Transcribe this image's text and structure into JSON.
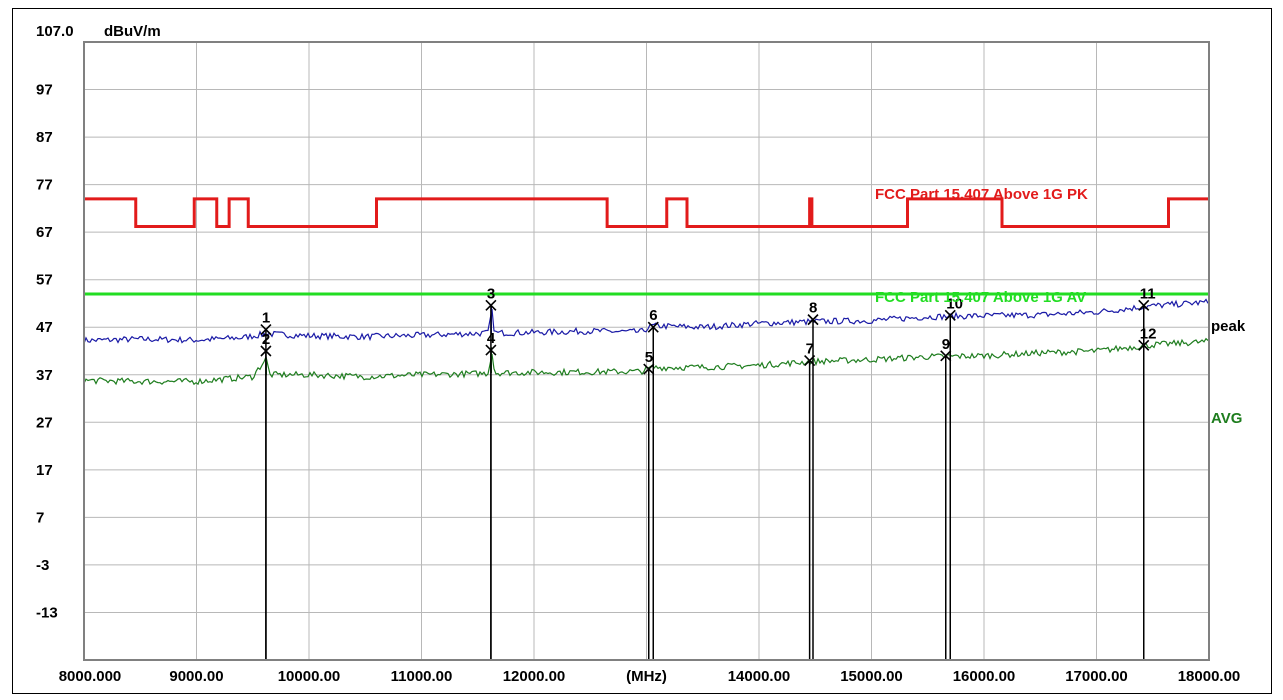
{
  "chart_data": {
    "type": "line",
    "y_top_label": "107.0",
    "y_unit": "dBuV/m",
    "x_unit": "(MHz)",
    "xlim": [
      8000,
      18000
    ],
    "ylim": [
      -23,
      107
    ],
    "y_ticks": [
      107,
      97,
      87,
      77,
      67,
      57,
      47,
      37,
      27,
      17,
      7,
      -3,
      -13
    ],
    "y_tick_labels": [
      "97",
      "87",
      "77",
      "67",
      "57",
      "47",
      "37",
      "27",
      "17",
      "7",
      "-3",
      "-13"
    ],
    "x_ticks": [
      8000,
      9000,
      10000,
      11000,
      12000,
      13000,
      14000,
      15000,
      16000,
      17000,
      18000
    ],
    "x_tick_labels": [
      "8000.000",
      "9000.00",
      "10000.00",
      "11000.00",
      "12000.00",
      "(MHz)",
      "14000.00",
      "15000.00",
      "16000.00",
      "17000.00",
      "18000.00"
    ],
    "grid": true,
    "limits": [
      {
        "name": "FCC Part 15.407 Above 1G PK",
        "color": "#e21b1b",
        "points": [
          [
            8000,
            74
          ],
          [
            8460,
            74
          ],
          [
            8460,
            68.2
          ],
          [
            8980,
            68.2
          ],
          [
            8980,
            74
          ],
          [
            9180,
            74
          ],
          [
            9180,
            68.2
          ],
          [
            9290,
            68.2
          ],
          [
            9290,
            74
          ],
          [
            9460,
            74
          ],
          [
            9460,
            68.2
          ],
          [
            10600,
            68.2
          ],
          [
            10600,
            74
          ],
          [
            12650,
            74
          ],
          [
            12650,
            68.2
          ],
          [
            13180,
            68.2
          ],
          [
            13180,
            74
          ],
          [
            13360,
            74
          ],
          [
            13360,
            68.2
          ],
          [
            14450,
            68.2
          ],
          [
            14450,
            74
          ],
          [
            14470,
            74
          ],
          [
            14470,
            68.2
          ],
          [
            15320,
            68.2
          ],
          [
            15320,
            74
          ],
          [
            16160,
            74
          ],
          [
            16160,
            68.2
          ],
          [
            17640,
            68.2
          ],
          [
            17640,
            74
          ],
          [
            18000,
            74
          ]
        ]
      },
      {
        "name": "FCC Part 15.407 Above 1G AV",
        "color": "#22dd22",
        "points": [
          [
            8000,
            54
          ],
          [
            18000,
            54
          ]
        ]
      }
    ],
    "series": [
      {
        "name": "peak",
        "color": "#1a1aa6",
        "points": [
          [
            8000,
            44.2
          ],
          [
            8500,
            44.5
          ],
          [
            9000,
            44.3
          ],
          [
            9400,
            44.8
          ],
          [
            9620,
            45.6
          ],
          [
            10000,
            45.2
          ],
          [
            10500,
            45.0
          ],
          [
            11000,
            45.3
          ],
          [
            11600,
            45.8
          ],
          [
            11620,
            51.5
          ],
          [
            11650,
            45.8
          ],
          [
            12000,
            45.9
          ],
          [
            12500,
            46.2
          ],
          [
            12950,
            46.0
          ],
          [
            13050,
            47.3
          ],
          [
            13500,
            47.0
          ],
          [
            14000,
            47.8
          ],
          [
            14500,
            48.2
          ],
          [
            15000,
            48.4
          ],
          [
            15500,
            49.2
          ],
          [
            16000,
            49.4
          ],
          [
            16500,
            49.6
          ],
          [
            17000,
            50.2
          ],
          [
            17500,
            51.5
          ],
          [
            18000,
            52.3
          ]
        ]
      },
      {
        "name": "AVG",
        "color": "#1e7d1e",
        "points": [
          [
            8000,
            35.8
          ],
          [
            8500,
            35.6
          ],
          [
            9000,
            35.6
          ],
          [
            9500,
            36.6
          ],
          [
            9620,
            40.5
          ],
          [
            9650,
            37.0
          ],
          [
            10000,
            37.0
          ],
          [
            10500,
            36.6
          ],
          [
            11000,
            37.0
          ],
          [
            11600,
            37.3
          ],
          [
            11620,
            42.8
          ],
          [
            11650,
            37.4
          ],
          [
            12000,
            37.5
          ],
          [
            12500,
            37.6
          ],
          [
            12950,
            37.7
          ],
          [
            13050,
            38.5
          ],
          [
            13500,
            38.6
          ],
          [
            14000,
            39.0
          ],
          [
            14500,
            39.8
          ],
          [
            15000,
            40.2
          ],
          [
            15500,
            40.8
          ],
          [
            16000,
            41.0
          ],
          [
            16500,
            41.6
          ],
          [
            17000,
            42.0
          ],
          [
            17500,
            43.3
          ],
          [
            18000,
            44.0
          ]
        ]
      }
    ],
    "markers": [
      {
        "label": "1",
        "x": 9617,
        "y": 46.5
      },
      {
        "label": "2",
        "x": 9617,
        "y": 42.0
      },
      {
        "label": "3",
        "x": 11617,
        "y": 51.6
      },
      {
        "label": "4",
        "x": 11617,
        "y": 42.2
      },
      {
        "label": "5",
        "x": 13020,
        "y": 38.2
      },
      {
        "label": "6",
        "x": 13060,
        "y": 47.0
      },
      {
        "label": "7",
        "x": 14450,
        "y": 40.0
      },
      {
        "label": "8",
        "x": 14480,
        "y": 48.6
      },
      {
        "label": "9",
        "x": 15660,
        "y": 41.0
      },
      {
        "label": "10",
        "x": 15700,
        "y": 49.5
      },
      {
        "label": "11",
        "x": 17420,
        "y": 51.6
      },
      {
        "label": "12",
        "x": 17420,
        "y": 43.2
      }
    ]
  }
}
